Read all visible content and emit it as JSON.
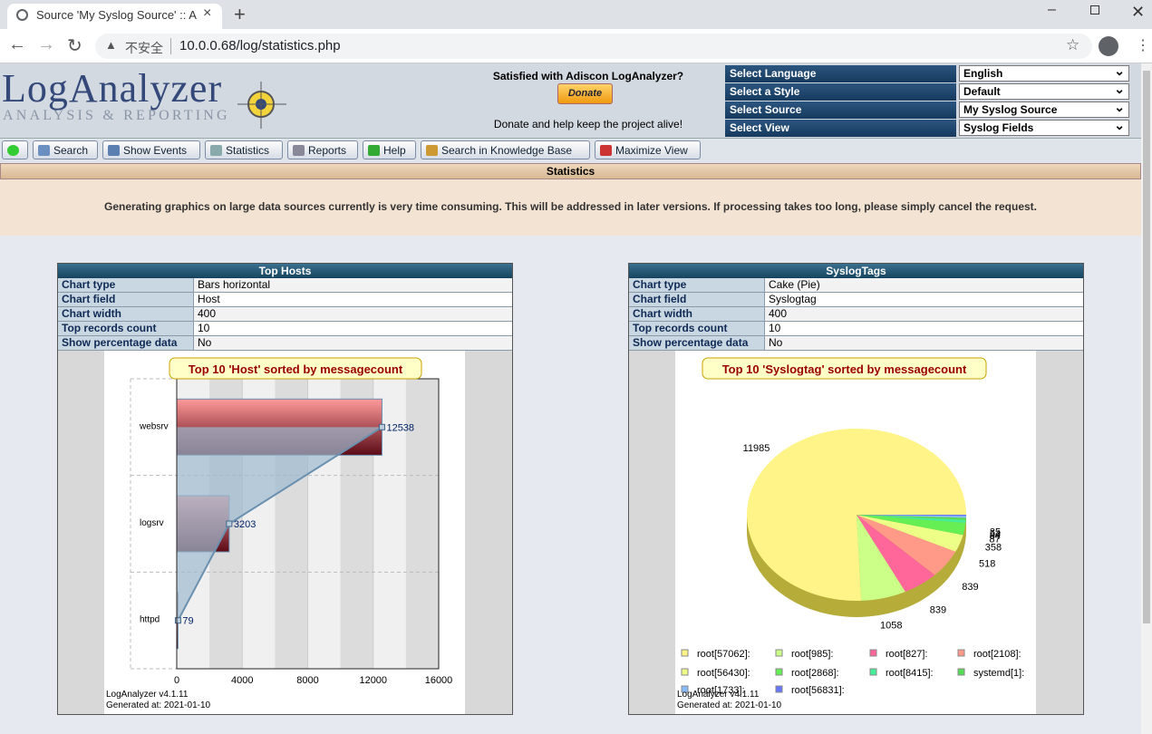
{
  "browser": {
    "tab_title": "Source 'My Syslog Source' :: A",
    "security": "不安全",
    "url": "10.0.0.68/log/statistics.php"
  },
  "header": {
    "logo": "LogAnalyzer",
    "logo_sub": "ANALYSIS & REPORTING",
    "donate_question": "Satisfied with Adiscon LogAnalyzer?",
    "donate_button": "Donate",
    "donate_note": "Donate and help keep the project alive!",
    "selectors": [
      {
        "label": "Select Language",
        "value": "English"
      },
      {
        "label": "Select a Style",
        "value": "Default"
      },
      {
        "label": "Select Source",
        "value": "My Syslog Source"
      },
      {
        "label": "Select View",
        "value": "Syslog Fields"
      }
    ]
  },
  "menu": [
    "Search",
    "Show Events",
    "Statistics",
    "Reports",
    "Help",
    "Search in Knowledge Base",
    "Maximize View"
  ],
  "page": {
    "title": "Statistics",
    "notice": "Generating graphics on large data sources currently is very time consuming. This will be addressed in later versions. If processing takes too long, please simply cancel the request."
  },
  "panels": [
    {
      "title": "Top Hosts",
      "rows": [
        [
          "Chart type",
          "Bars horizontal"
        ],
        [
          "Chart field",
          "Host"
        ],
        [
          "Chart width",
          "400"
        ],
        [
          "Top records count",
          "10"
        ],
        [
          "Show percentage data",
          "No"
        ]
      ]
    },
    {
      "title": "SyslogTags",
      "rows": [
        [
          "Chart type",
          "Cake (Pie)"
        ],
        [
          "Chart field",
          "Syslogtag"
        ],
        [
          "Chart width",
          "400"
        ],
        [
          "Top records count",
          "10"
        ],
        [
          "Show percentage data",
          "No"
        ]
      ]
    }
  ],
  "chart_data": [
    {
      "type": "bar",
      "orientation": "horizontal",
      "title": "Top 10 'Host' sorted by messagecount",
      "categories": [
        "websrv",
        "logsrv",
        "httpd"
      ],
      "values": [
        12538,
        3203,
        79
      ],
      "gradient": [
        "#ff9a9a",
        "#5a0a16"
      ],
      "xlim": [
        0,
        16000
      ],
      "xticks": [
        0,
        4000,
        8000,
        12000,
        16000
      ],
      "footer": [
        "LogAnalyzer v4.1.11",
        "Generated at: 2021-01-10"
      ]
    },
    {
      "type": "pie",
      "title": "Top 10 'Syslogtag' sorted by messagecount",
      "labels": [
        "root[57062]:",
        "root[985]:",
        "root[827]:",
        "root[2108]:",
        "root[56430]:",
        "root[2868]:",
        "root[8415]:",
        "systemd[1]:",
        "root[1733]:",
        "root[56831]:"
      ],
      "values": [
        11985,
        1058,
        839,
        839,
        518,
        358,
        87,
        64,
        54,
        35
      ],
      "colors": [
        "#fff488",
        "#ccff88",
        "#ff6699",
        "#ff9988",
        "#eeff88",
        "#66ee55",
        "#44ee99",
        "#55dd55",
        "#88bbff",
        "#6677ff"
      ],
      "footer": [
        "LogAnalyzer v4.1.11",
        "Generated at: 2021-01-10"
      ]
    }
  ]
}
